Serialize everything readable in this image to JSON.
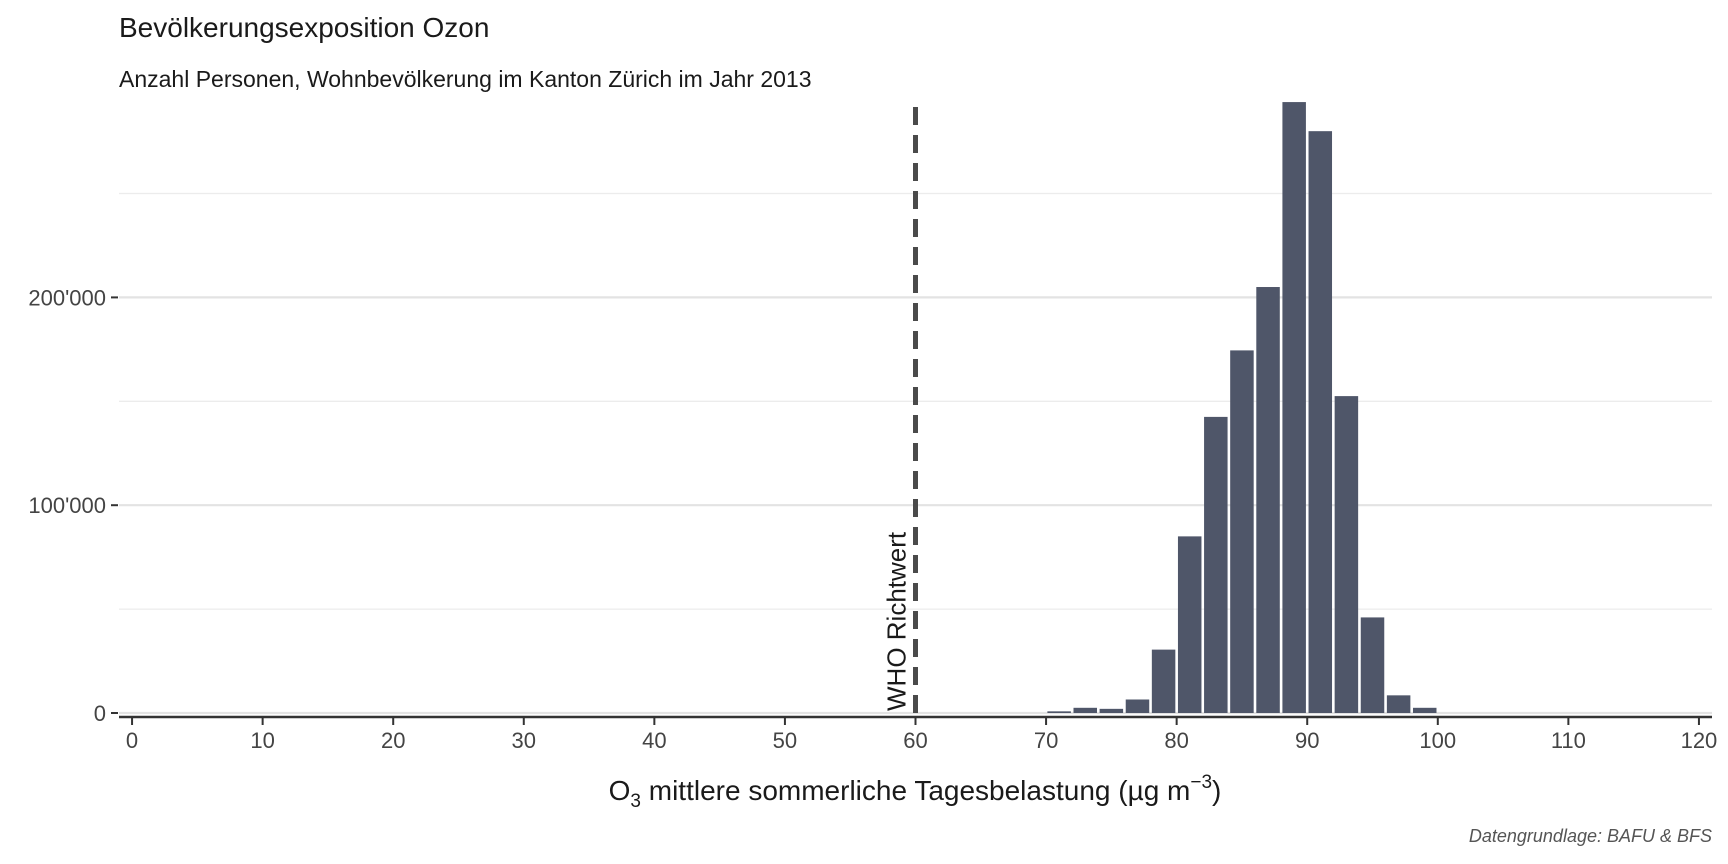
{
  "chart_data": {
    "type": "bar",
    "title": "Bevölkerungsexposition Ozon",
    "subtitle": "Anzahl Personen, Wohnbevölkerung im Kanton Zürich im Jahr 2013",
    "xlabel": {
      "main": "O",
      "sub": "3",
      "middle": " mittlere sommerliche Tagesbelastung (µg m",
      "sup": "−3",
      "end": ")"
    },
    "caption": "Datengrundlage: BAFU & BFS",
    "xlim": [
      -1,
      121
    ],
    "ylim": [
      0,
      295000
    ],
    "x_ticks": [
      "0",
      "10",
      "20",
      "30",
      "40",
      "50",
      "60",
      "70",
      "80",
      "90",
      "100",
      "110",
      "120"
    ],
    "x_tick_values": [
      0,
      10,
      20,
      30,
      40,
      50,
      60,
      70,
      80,
      90,
      100,
      110,
      120
    ],
    "y_ticks": [
      "0",
      "100'000",
      "200'000"
    ],
    "y_tick_values": [
      0,
      100000,
      200000
    ],
    "y_minor_gridlines": [
      50000,
      150000,
      250000
    ],
    "grid": "horizontal",
    "bar_width": 2,
    "bar_color": "#4f5669",
    "x": [
      71,
      73,
      75,
      77,
      79,
      81,
      83,
      85,
      87,
      89,
      91,
      93,
      95,
      97,
      99
    ],
    "values": [
      800,
      2500,
      2000,
      6500,
      30500,
      85000,
      142500,
      174500,
      205000,
      294000,
      280000,
      152500,
      46000,
      8500,
      2500
    ],
    "reference_line": {
      "x": 60,
      "label": "WHO Richtwert",
      "style": "dashed"
    }
  }
}
